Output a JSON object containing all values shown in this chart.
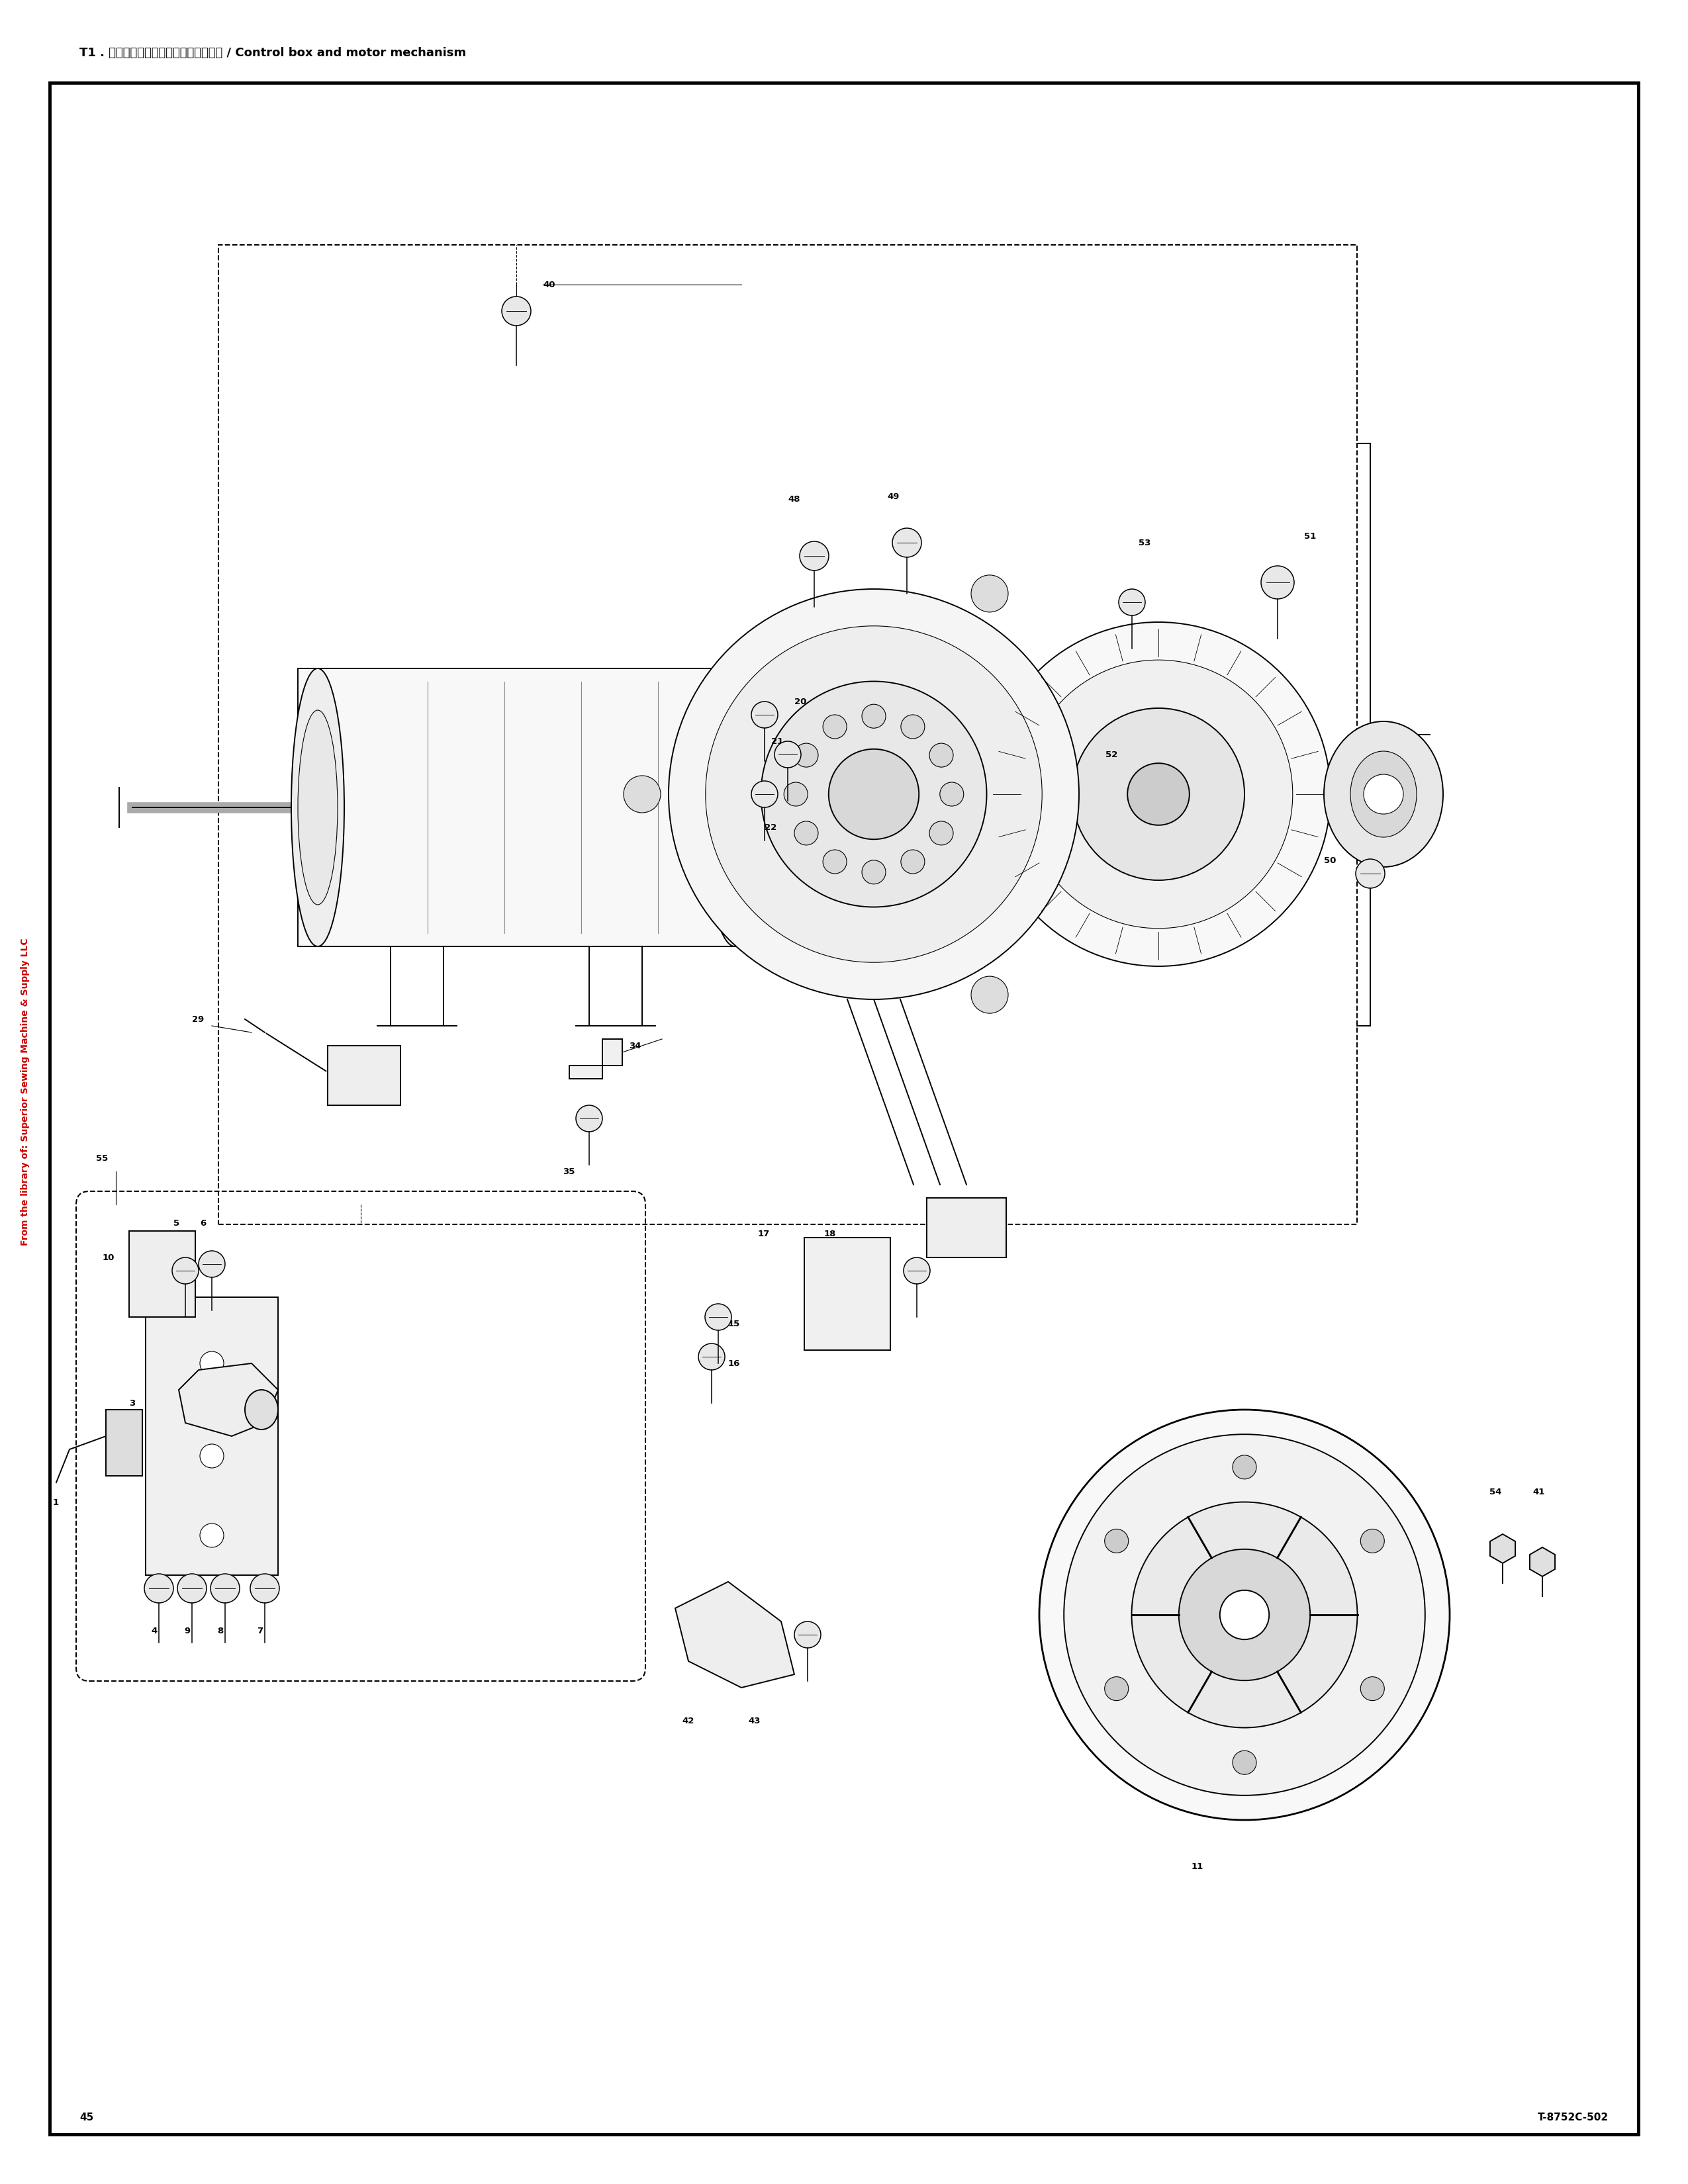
{
  "title": "T1 . コントロールボックス、モータ関係 / Control box and motor mechanism",
  "page_number": "45",
  "part_number": "T-8752C-502",
  "watermark": "From the library of: Superior Sewing Machine & Supply LLC",
  "bg": "#ffffff",
  "black": "#000000",
  "red": "#cc0000",
  "lw_border": 3.5,
  "lw_main": 1.4,
  "lw_thin": 0.8,
  "lw_dash": 1.5,
  "title_fs": 13,
  "label_fs": 9.5,
  "page_fs": 11,
  "wm_fs": 10
}
